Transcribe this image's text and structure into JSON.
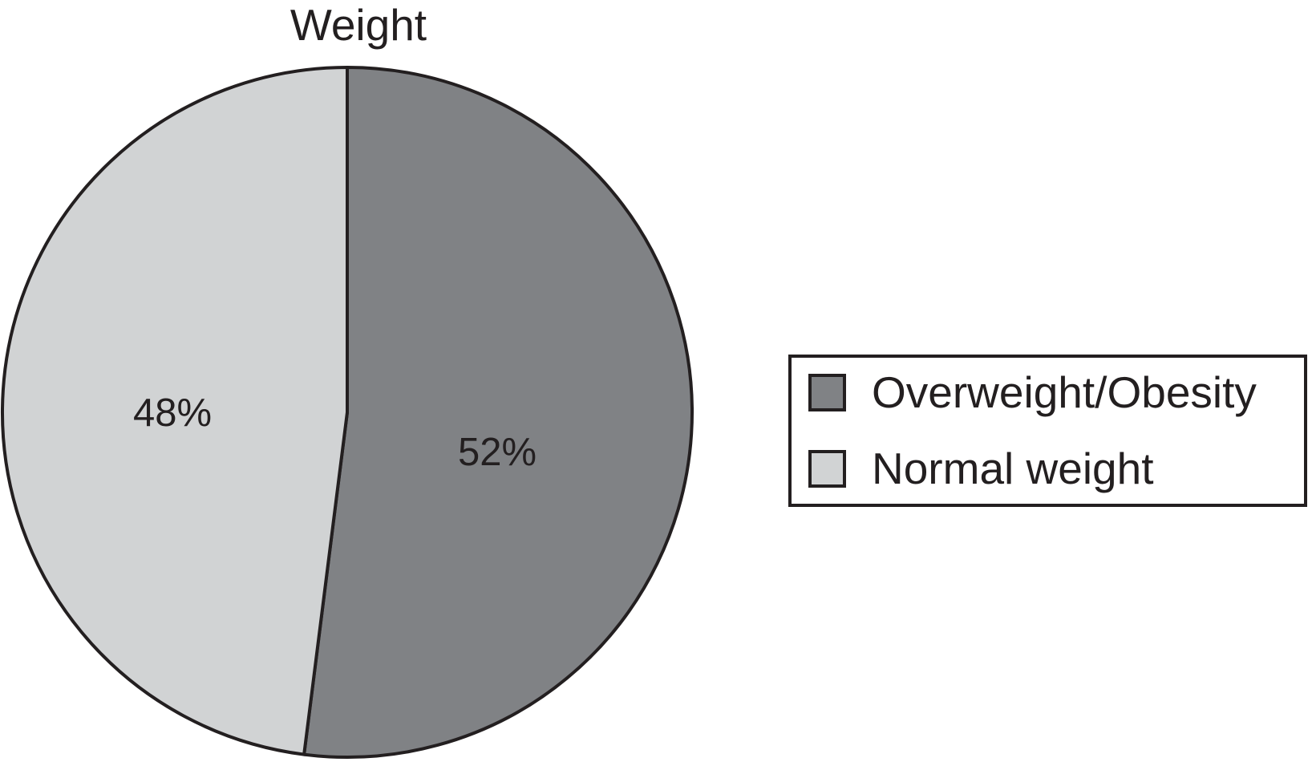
{
  "figure": {
    "background": "#ffffff"
  },
  "chart_data": {
    "type": "pie",
    "title": "Weight",
    "slices": [
      {
        "label": "Overweight/Obesity",
        "value": 52,
        "pct_label": "52%",
        "color": "#808285"
      },
      {
        "label": "Normal weight",
        "value": 48,
        "pct_label": "48%",
        "color": "#d1d3d4"
      }
    ],
    "stroke_color": "#231f20",
    "text_color": "#231f20",
    "start_angle_deg": -90,
    "direction": "clockwise",
    "legend_position": "right",
    "grid": "off"
  }
}
